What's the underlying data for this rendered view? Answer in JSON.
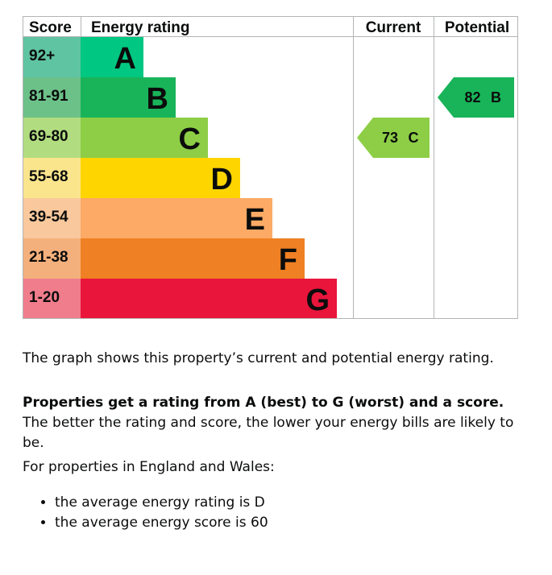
{
  "chart_data": {
    "type": "bar",
    "headers": {
      "score": "Score",
      "rating": "Energy rating",
      "current": "Current",
      "potential": "Potential"
    },
    "bands": [
      {
        "letter": "A",
        "score_range": "92+",
        "color": "#00c781",
        "score_color": "#5fc4a2"
      },
      {
        "letter": "B",
        "score_range": "81-91",
        "color": "#19b459",
        "score_color": "#6cc189"
      },
      {
        "letter": "C",
        "score_range": "69-80",
        "color": "#8dce46",
        "score_color": "#b1dd80"
      },
      {
        "letter": "D",
        "score_range": "55-68",
        "color": "#ffd500",
        "score_color": "#fbe58c"
      },
      {
        "letter": "E",
        "score_range": "39-54",
        "color": "#fcaa65",
        "score_color": "#f9c89c"
      },
      {
        "letter": "F",
        "score_range": "21-38",
        "color": "#ef8023",
        "score_color": "#f4b07c"
      },
      {
        "letter": "G",
        "score_range": "1-20",
        "color": "#e9153b",
        "score_color": "#f07d8c"
      }
    ],
    "current": {
      "score": 73,
      "letter": "C",
      "color": "#8dce46"
    },
    "potential": {
      "score": 82,
      "letter": "B",
      "color": "#19b459"
    }
  },
  "text": {
    "description": "The graph shows this property’s current and potential energy rating.",
    "rating_bold": "Properties get a rating from A (best) to G (worst) and a score.",
    "rating_rest": " The better the rating and score, the lower your energy bills are likely to be.",
    "region_intro": "For properties in England and Wales:",
    "averages": [
      "the average energy rating is D",
      "the average energy score is 60"
    ]
  }
}
